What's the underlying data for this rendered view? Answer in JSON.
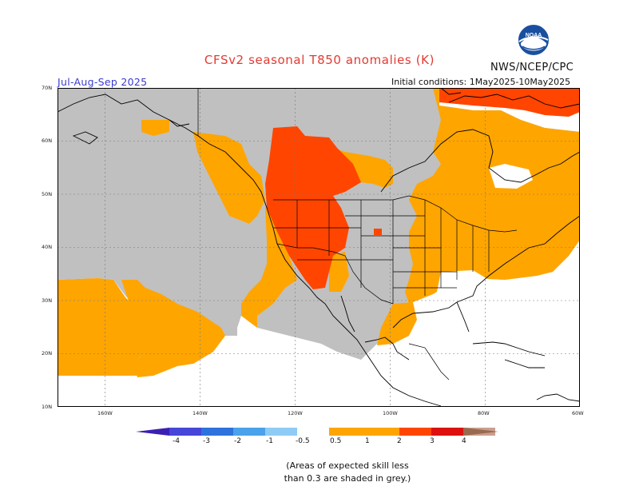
{
  "title": "CFSv2 seasonal T850 anomalies (K)",
  "agency": "NWS/NCEP/CPC",
  "season": "Jul-Aug-Sep 2025",
  "initial_conditions": "Initial conditions: 1May2025-10May2025",
  "logo_text": "NOAA",
  "lat_labels": [
    "70N",
    "60N",
    "50N",
    "40N",
    "30N",
    "20N",
    "10N"
  ],
  "lon_labels": [
    "160W",
    "140W",
    "120W",
    "100W",
    "80W",
    "60W"
  ],
  "colorbar": {
    "labels": [
      "-4",
      "-3",
      "-2",
      "-1",
      "-0.5",
      "0.5",
      "1",
      "2",
      "3",
      "4"
    ],
    "colors": [
      "#3b1fb5",
      "#4646d8",
      "#2e72dd",
      "#4aa2ea",
      "#8ecbf5",
      "#ffffff",
      "#ffa500",
      "#ff4500",
      "#dd1010",
      "#a01818",
      "#c8a090",
      "#9a6a50"
    ]
  },
  "note": [
    "(Areas of expected skill less",
    "than 0.3 are shaded in grey.)"
  ],
  "map_colors": {
    "skill_grey": "#c0c0c0",
    "anomaly_0_5_to_1": "#ffa500",
    "anomaly_1_to_2": "#ff4500",
    "anomaly_2_to_3": "#dd1010",
    "ocean_land_neutral": "#ffffff"
  }
}
